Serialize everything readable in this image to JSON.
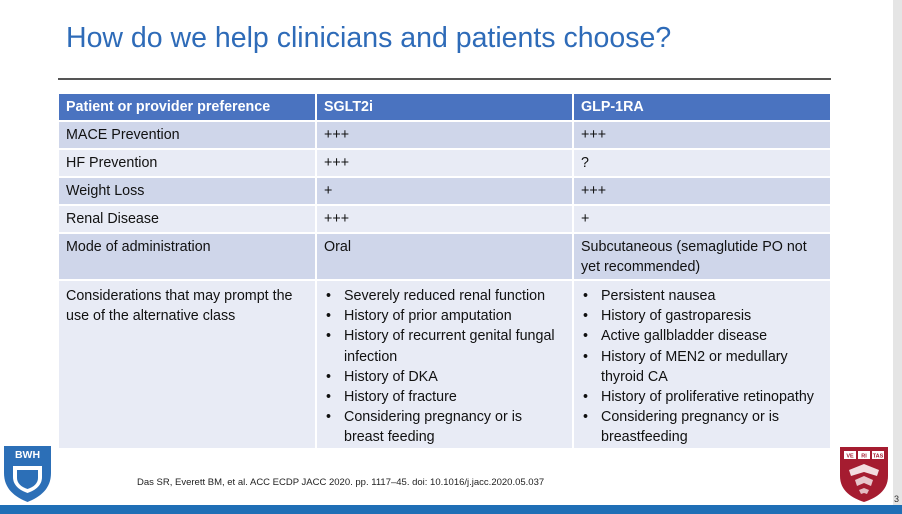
{
  "slide": {
    "title": "How do we help clinicians and patients choose?",
    "citation": "Das SR, Everett BM, et al. ACC ECDP JACC 2020. pp. 1117–45. doi: 10.1016/j.jacc.2020.05.037"
  },
  "table": {
    "headers": [
      "Patient or provider preference",
      "SGLT2i",
      "GLP-1RA"
    ],
    "rows": [
      {
        "label": "MACE Prevention",
        "sglt2i": "+++",
        "glp1ra": "+++"
      },
      {
        "label": "HF Prevention",
        "sglt2i": "+++",
        "glp1ra": "?"
      },
      {
        "label": "Weight Loss",
        "sglt2i": "+",
        "glp1ra": "+++"
      },
      {
        "label": "Renal Disease",
        "sglt2i": "+++",
        "glp1ra": "+"
      },
      {
        "label": "Mode of administration",
        "sglt2i": "Oral",
        "glp1ra": "Subcutaneous (semaglutide PO not yet recommended)"
      }
    ],
    "considerations": {
      "label": "Considerations that may prompt the use of the alternative class",
      "sglt2i": [
        "Severely reduced renal function",
        "History of prior amputation",
        "History of recurrent genital fungal infection",
        "History of DKA",
        "History of fracture",
        "Considering pregnancy or is breast feeding"
      ],
      "glp1ra": [
        "Persistent nausea",
        "History of gastroparesis",
        "Active gallbladder disease",
        "History of MEN2 or medullary thyroid CA",
        "History of proliferative retinopathy",
        "Considering pregnancy or is breastfeeding"
      ]
    }
  },
  "logos": {
    "bwh": "BWH",
    "harvard_shield": [
      "VE",
      "RI",
      "TAS"
    ]
  },
  "frame": {
    "page_mark": "3"
  },
  "colors": {
    "title": "#2e6bb8",
    "header_fill": "#4a73c0",
    "row_fill_dark": "#cfd6ea",
    "row_fill_light": "#e8ebf5",
    "bottom_bar": "#1f6fb6",
    "bwh_blue": "#2c6fb7",
    "harvard_crimson": "#a51c30"
  },
  "icons": [
    "bwh-logo",
    "harvard-shield-logo"
  ]
}
